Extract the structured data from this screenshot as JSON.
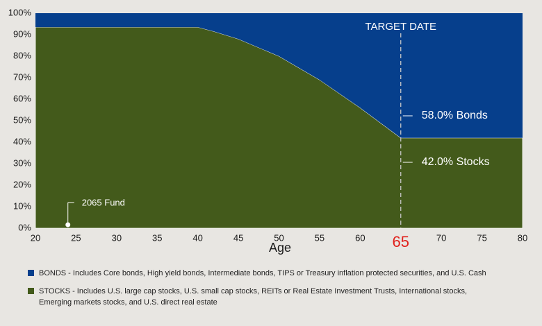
{
  "chart_data": {
    "type": "stacked-area",
    "x": [
      20,
      40,
      42,
      45,
      50,
      55,
      60,
      65,
      80
    ],
    "series": [
      {
        "name": "STOCKS - Includes U.S. large cap stocks, U.S. small cap stocks, REITs or Real Estate Investment Trusts, International stocks, Emerging markets stocks, and U.S. direct real estate",
        "color": "#435a1b",
        "values": [
          93.5,
          93.5,
          91.5,
          88,
          80,
          69,
          56,
          42,
          42
        ]
      },
      {
        "name": "BONDS - Includes Core bonds, High yield bonds, Intermediate bonds, TIPS or Treasury inflation protected securities, and U.S. Cash",
        "color": "#063f8c",
        "values": [
          6.5,
          6.5,
          8.5,
          12,
          20,
          31,
          44,
          58,
          58
        ]
      }
    ],
    "xlabel": "Age",
    "xlim": [
      20,
      80
    ],
    "xticks": [
      20,
      25,
      30,
      35,
      40,
      45,
      50,
      55,
      60,
      65,
      70,
      75,
      80
    ],
    "highlight_xtick": 65,
    "highlight_color": "#e0201b",
    "ylim": [
      0,
      100
    ],
    "yticks": [
      {
        "value": 0,
        "label": "0%"
      },
      {
        "value": 10,
        "label": "10%"
      },
      {
        "value": 20,
        "label": "20%"
      },
      {
        "value": 30,
        "label": "30%"
      },
      {
        "value": 40,
        "label": "40%"
      },
      {
        "value": 50,
        "label": "50%"
      },
      {
        "value": 60,
        "label": "60%"
      },
      {
        "value": 70,
        "label": "70%"
      },
      {
        "value": 80,
        "label": "80%"
      },
      {
        "value": 90,
        "label": "90%"
      },
      {
        "value": 100,
        "label": "100%"
      }
    ],
    "target": {
      "label": "TARGET DATE",
      "x": 65
    },
    "fund": {
      "label": "2065 Fund",
      "x": 24
    },
    "annotations": [
      "58.0% Bonds",
      "42.0% Stocks"
    ]
  }
}
